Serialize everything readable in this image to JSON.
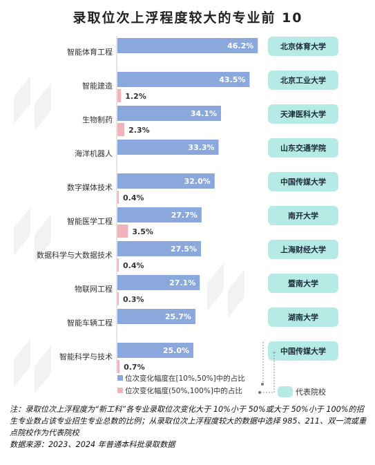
{
  "chart_data": {
    "type": "bar",
    "title": "录取位次上浮程度较大的专业前 10",
    "categories": [
      "智能体育工程",
      "智能建造",
      "生物制药",
      "海洋机器人",
      "数字媒体技术",
      "智能医学工程",
      "数据科学与大数据技术",
      "物联网工程",
      "智能车辆工程",
      "智能科学与技术"
    ],
    "series": [
      {
        "name": "位次变化幅度在[10%,50%]中的占比",
        "color": "#8aa8dc",
        "values": [
          46.2,
          43.5,
          34.1,
          33.3,
          32.0,
          27.7,
          27.5,
          27.1,
          25.7,
          25.0
        ],
        "labels": [
          "46.2%",
          "43.5%",
          "34.1%",
          "33.3%",
          "32.0%",
          "27.7%",
          "27.5%",
          "27.1%",
          "25.7%",
          "25.0%"
        ]
      },
      {
        "name": "位次变化幅度(50%,100%]中的占比",
        "color": "#f3b3bb",
        "values": [
          null,
          1.2,
          2.3,
          null,
          0.4,
          3.5,
          0.4,
          0.3,
          null,
          0.7
        ],
        "labels": [
          "",
          "1.2%",
          "2.3%",
          "",
          "0.4%",
          "3.5%",
          "0.4%",
          "0.3%",
          "",
          "0.7%"
        ]
      }
    ],
    "representative_schools": [
      "北京体育大学",
      "北京工业大学",
      "天津医科大学",
      "山东交通学院",
      "中国传媒大学",
      "南开大学",
      "上海财经大学",
      "暨南大学",
      "湖南大学",
      "中国传媒大学"
    ],
    "legend_representative": "代表院校",
    "colors": {
      "blue": "#8aa8dc",
      "pink": "#f3b3bb",
      "school_box": "#b5ebe4"
    }
  },
  "note": "注：录取位次上浮程度为“新工科”各专业录取位次变化大于 10%小于 50%或大于 50%小于 100%的招生专业数占该专业招生专业总数的比例；从录取位次上浮程度较大的数据中选择 985、211、双一流或重点院校作为代表院校",
  "source": "数据来源：2023、2024 年普通本科批录取数据"
}
